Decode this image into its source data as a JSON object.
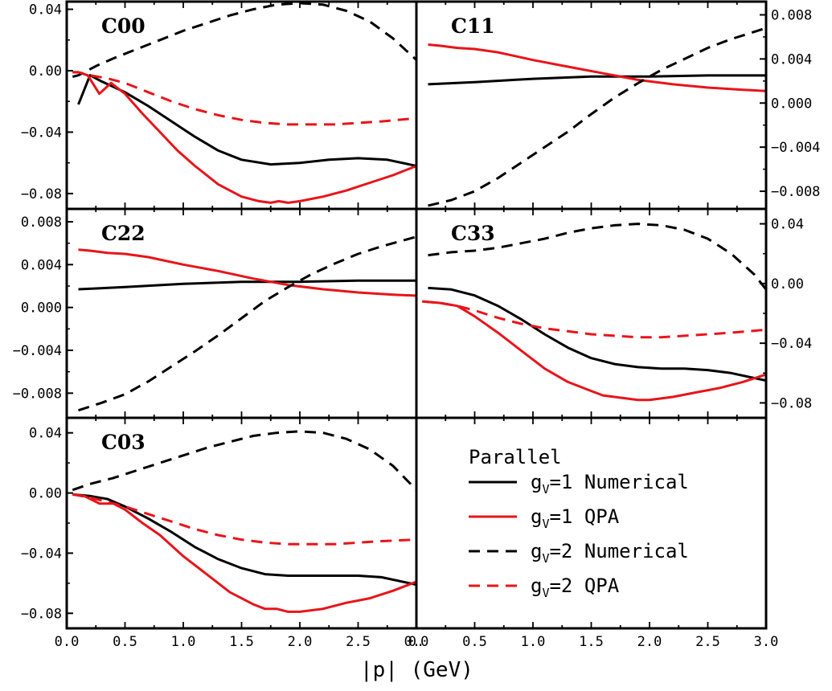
{
  "chart_data": {
    "type": "line",
    "xlabel": "|p|  (GeV)",
    "xlim": [
      0.0,
      3.0
    ],
    "x_ticks": [
      "0.0",
      "0.5",
      "1.0",
      "1.5",
      "2.0",
      "2.5",
      "3.0"
    ],
    "x_ticks_left": [
      "0.0",
      "0.5",
      "1.0",
      "1.5",
      "2.0",
      "2.5",
      "0."
    ],
    "legend": {
      "title": "Parallel",
      "entries": [
        {
          "pre": "g",
          "sub": "V",
          "post": "=1 Numerical",
          "color": "#000000",
          "dashed": false
        },
        {
          "pre": "g",
          "sub": "V",
          "post": "=1 QPA",
          "color": "#e8141a",
          "dashed": false
        },
        {
          "pre": "g",
          "sub": "V",
          "post": "=2 Numerical",
          "color": "#000000",
          "dashed": true
        },
        {
          "pre": "g",
          "sub": "V",
          "post": "=2 QPA",
          "color": "#e8141a",
          "dashed": true
        }
      ]
    },
    "panels": [
      {
        "label": "C00",
        "ylim": [
          -0.09,
          0.045
        ],
        "y_ticks": [
          0.04,
          0.0,
          -0.04,
          -0.08
        ],
        "y_tick_labels": [
          "0.04",
          "0.00",
          "−0.04",
          "−0.08"
        ],
        "y_tick_side": "left",
        "series": [
          {
            "color": "#000000",
            "dashed": false,
            "x": [
              0.1,
              0.2,
              0.3,
              0.5,
              0.7,
              0.9,
              1.1,
              1.3,
              1.5,
              1.75,
              2.0,
              2.25,
              2.5,
              2.75,
              3.0
            ],
            "y": [
              -0.022,
              -0.003,
              -0.007,
              -0.014,
              -0.023,
              -0.033,
              -0.043,
              -0.052,
              -0.058,
              -0.061,
              -0.06,
              -0.058,
              -0.057,
              -0.058,
              -0.062
            ]
          },
          {
            "color": "#e8141a",
            "dashed": false,
            "x": [
              0.05,
              0.1,
              0.18,
              0.28,
              0.38,
              0.5,
              0.65,
              0.8,
              0.95,
              1.1,
              1.3,
              1.5,
              1.65,
              1.75,
              1.82,
              1.9,
              2.0,
              2.2,
              2.4,
              2.6,
              2.8,
              3.0
            ],
            "y": [
              -0.001,
              -0.001,
              -0.003,
              -0.015,
              -0.008,
              -0.015,
              -0.028,
              -0.04,
              -0.052,
              -0.062,
              -0.074,
              -0.082,
              -0.085,
              -0.086,
              -0.085,
              -0.086,
              -0.085,
              -0.082,
              -0.078,
              -0.073,
              -0.068,
              -0.062
            ]
          },
          {
            "color": "#000000",
            "dashed": true,
            "x": [
              0.05,
              0.1,
              0.25,
              0.4,
              0.6,
              0.8,
              1.0,
              1.2,
              1.4,
              1.6,
              1.8,
              2.0,
              2.2,
              2.4,
              2.6,
              2.8,
              3.0
            ],
            "y": [
              -0.004,
              -0.003,
              0.003,
              0.008,
              0.014,
              0.02,
              0.026,
              0.031,
              0.036,
              0.04,
              0.043,
              0.044,
              0.043,
              0.039,
              0.032,
              0.021,
              0.007
            ]
          },
          {
            "color": "#e8141a",
            "dashed": true,
            "x": [
              0.05,
              0.1,
              0.2,
              0.35,
              0.5,
              0.7,
              0.9,
              1.1,
              1.3,
              1.5,
              1.7,
              1.9,
              2.1,
              2.3,
              2.5,
              2.7,
              3.0
            ],
            "y": [
              -0.001,
              -0.001,
              -0.003,
              -0.005,
              -0.008,
              -0.014,
              -0.02,
              -0.025,
              -0.029,
              -0.032,
              -0.034,
              -0.035,
              -0.035,
              -0.035,
              -0.034,
              -0.033,
              -0.031
            ]
          }
        ]
      },
      {
        "label": "C11",
        "ylim": [
          -0.0096,
          0.0092
        ],
        "y_ticks": [
          0.008,
          0.004,
          0.0,
          -0.004,
          -0.008
        ],
        "y_tick_labels": [
          "0.008",
          "0.004",
          "0.000",
          "−0.004",
          "−0.008"
        ],
        "y_tick_side": "right",
        "series": [
          {
            "color": "#000000",
            "dashed": false,
            "x": [
              0.1,
              0.5,
              1.0,
              1.5,
              2.0,
              2.5,
              3.0
            ],
            "y": [
              0.0017,
              0.0019,
              0.0022,
              0.0024,
              0.0024,
              0.0025,
              0.0025
            ]
          },
          {
            "color": "#e8141a",
            "dashed": false,
            "x": [
              0.1,
              0.2,
              0.35,
              0.5,
              0.7,
              1.0,
              1.3,
              1.6,
              1.9,
              2.2,
              2.5,
              2.8,
              3.0
            ],
            "y": [
              0.0053,
              0.0052,
              0.005,
              0.0049,
              0.0046,
              0.0039,
              0.0033,
              0.0027,
              0.0021,
              0.0017,
              0.0014,
              0.0012,
              0.0011
            ]
          },
          {
            "color": "#000000",
            "dashed": true,
            "x": [
              0.1,
              0.3,
              0.5,
              0.7,
              0.9,
              1.1,
              1.3,
              1.5,
              1.7,
              1.9,
              2.1,
              2.3,
              2.5,
              2.7,
              3.0
            ],
            "y": [
              -0.0093,
              -0.0088,
              -0.008,
              -0.0068,
              -0.0054,
              -0.004,
              -0.0026,
              -0.001,
              0.0005,
              0.0018,
              0.003,
              0.004,
              0.005,
              0.0058,
              0.0068
            ]
          }
        ]
      },
      {
        "label": "C22",
        "ylim": [
          -0.0103,
          0.0092
        ],
        "y_ticks": [
          0.008,
          0.004,
          0.0,
          -0.004,
          -0.008
        ],
        "y_tick_labels": [
          "0.008",
          "0.004",
          "0.000",
          "−0.004",
          "−0.008"
        ],
        "y_tick_side": "left",
        "series": [
          {
            "color": "#000000",
            "dashed": false,
            "x": [
              0.1,
              0.5,
              1.0,
              1.5,
              2.0,
              2.5,
              3.0
            ],
            "y": [
              0.0017,
              0.0019,
              0.0022,
              0.0024,
              0.0024,
              0.0025,
              0.0025
            ]
          },
          {
            "color": "#e8141a",
            "dashed": false,
            "x": [
              0.1,
              0.2,
              0.35,
              0.5,
              0.7,
              1.0,
              1.3,
              1.6,
              1.9,
              2.2,
              2.5,
              2.8,
              3.0
            ],
            "y": [
              0.0054,
              0.0053,
              0.0051,
              0.005,
              0.0047,
              0.004,
              0.0034,
              0.0027,
              0.0021,
              0.0017,
              0.0014,
              0.0012,
              0.0011
            ]
          },
          {
            "color": "#000000",
            "dashed": true,
            "x": [
              0.1,
              0.3,
              0.5,
              0.7,
              0.9,
              1.1,
              1.3,
              1.5,
              1.7,
              1.9,
              2.1,
              2.3,
              2.5,
              2.7,
              3.0
            ],
            "y": [
              -0.0096,
              -0.0089,
              -0.0081,
              -0.0069,
              -0.0055,
              -0.0041,
              -0.0026,
              -0.001,
              0.0006,
              0.0019,
              0.0031,
              0.0041,
              0.005,
              0.0057,
              0.0066
            ]
          }
        ]
      },
      {
        "label": "C33",
        "ylim": [
          -0.09,
          0.05
        ],
        "y_ticks": [
          0.04,
          0.0,
          -0.04,
          -0.08
        ],
        "y_tick_labels": [
          "0.04",
          "0.00",
          "−0.04",
          "−0.08"
        ],
        "y_tick_side": "right",
        "series": [
          {
            "color": "#000000",
            "dashed": false,
            "x": [
              0.1,
              0.3,
              0.5,
              0.7,
              0.9,
              1.1,
              1.3,
              1.5,
              1.7,
              1.9,
              2.1,
              2.3,
              2.5,
              2.7,
              3.0
            ],
            "y": [
              -0.003,
              -0.004,
              -0.008,
              -0.015,
              -0.024,
              -0.034,
              -0.043,
              -0.05,
              -0.054,
              -0.056,
              -0.057,
              -0.057,
              -0.058,
              -0.06,
              -0.065
            ]
          },
          {
            "color": "#e8141a",
            "dashed": false,
            "x": [
              0.05,
              0.2,
              0.35,
              0.5,
              0.7,
              0.9,
              1.1,
              1.3,
              1.5,
              1.6,
              1.7,
              1.8,
              1.9,
              2.0,
              2.2,
              2.4,
              2.6,
              2.8,
              3.0
            ],
            "y": [
              -0.012,
              -0.013,
              -0.015,
              -0.022,
              -0.033,
              -0.045,
              -0.057,
              -0.066,
              -0.072,
              -0.075,
              -0.076,
              -0.077,
              -0.078,
              -0.078,
              -0.076,
              -0.073,
              -0.07,
              -0.066,
              -0.061
            ]
          },
          {
            "color": "#000000",
            "dashed": true,
            "x": [
              0.1,
              0.3,
              0.5,
              0.7,
              0.9,
              1.1,
              1.3,
              1.5,
              1.7,
              1.9,
              2.1,
              2.3,
              2.5,
              2.7,
              2.9,
              3.0
            ],
            "y": [
              0.019,
              0.021,
              0.022,
              0.024,
              0.027,
              0.03,
              0.034,
              0.037,
              0.039,
              0.04,
              0.039,
              0.036,
              0.03,
              0.02,
              0.006,
              -0.004
            ]
          },
          {
            "color": "#e8141a",
            "dashed": true,
            "x": [
              0.05,
              0.2,
              0.35,
              0.5,
              0.7,
              0.9,
              1.1,
              1.3,
              1.5,
              1.7,
              1.9,
              2.1,
              2.3,
              2.5,
              2.7,
              3.0
            ],
            "y": [
              -0.012,
              -0.013,
              -0.015,
              -0.018,
              -0.023,
              -0.027,
              -0.03,
              -0.032,
              -0.034,
              -0.035,
              -0.036,
              -0.036,
              -0.035,
              -0.034,
              -0.033,
              -0.031
            ]
          }
        ]
      },
      {
        "label": "C03",
        "ylim": [
          -0.09,
          0.05
        ],
        "y_ticks": [
          0.04,
          0.0,
          -0.04,
          -0.08
        ],
        "y_tick_labels": [
          "0.04",
          "0.00",
          "−0.04",
          "−0.08"
        ],
        "y_tick_side": "left",
        "series": [
          {
            "color": "#000000",
            "dashed": false,
            "x": [
              0.05,
              0.2,
              0.35,
              0.5,
              0.7,
              0.9,
              1.1,
              1.3,
              1.5,
              1.7,
              1.9,
              2.1,
              2.3,
              2.5,
              2.7,
              3.0
            ],
            "y": [
              -0.001,
              -0.002,
              -0.004,
              -0.009,
              -0.017,
              -0.026,
              -0.036,
              -0.044,
              -0.05,
              -0.054,
              -0.055,
              -0.055,
              -0.055,
              -0.055,
              -0.056,
              -0.061
            ]
          },
          {
            "color": "#e8141a",
            "dashed": false,
            "x": [
              0.05,
              0.15,
              0.28,
              0.4,
              0.5,
              0.65,
              0.8,
              1.0,
              1.2,
              1.4,
              1.6,
              1.7,
              1.8,
              1.9,
              2.0,
              2.2,
              2.4,
              2.6,
              2.8,
              3.0
            ],
            "y": [
              -0.001,
              -0.002,
              -0.007,
              -0.007,
              -0.011,
              -0.02,
              -0.028,
              -0.042,
              -0.054,
              -0.066,
              -0.074,
              -0.077,
              -0.077,
              -0.079,
              -0.079,
              -0.077,
              -0.073,
              -0.07,
              -0.065,
              -0.059
            ]
          },
          {
            "color": "#000000",
            "dashed": true,
            "x": [
              0.05,
              0.2,
              0.4,
              0.6,
              0.8,
              1.0,
              1.2,
              1.4,
              1.6,
              1.8,
              2.0,
              2.2,
              2.4,
              2.6,
              2.8,
              3.0
            ],
            "y": [
              0.002,
              0.006,
              0.01,
              0.015,
              0.02,
              0.025,
              0.03,
              0.034,
              0.038,
              0.04,
              0.041,
              0.04,
              0.036,
              0.029,
              0.018,
              0.002
            ]
          },
          {
            "color": "#e8141a",
            "dashed": true,
            "x": [
              0.05,
              0.2,
              0.35,
              0.5,
              0.7,
              0.9,
              1.1,
              1.3,
              1.5,
              1.7,
              1.9,
              2.1,
              2.3,
              2.5,
              2.7,
              3.0
            ],
            "y": [
              -0.001,
              -0.003,
              -0.006,
              -0.009,
              -0.014,
              -0.019,
              -0.024,
              -0.028,
              -0.031,
              -0.033,
              -0.034,
              -0.034,
              -0.034,
              -0.033,
              -0.032,
              -0.031
            ]
          }
        ]
      }
    ]
  }
}
